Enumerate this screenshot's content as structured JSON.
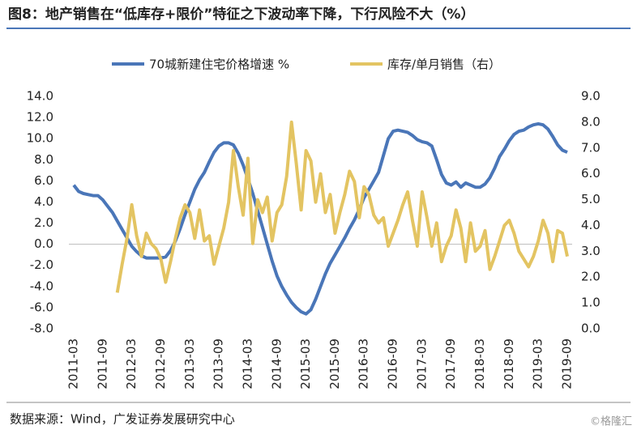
{
  "chart_data": {
    "type": "line",
    "title": "图8：地产销售在“低库存+限价”特征之下波动率下降，下行风险不大（%）",
    "source": "数据来源：Wind，广发证券发展研究中心",
    "watermark": "©格隆汇",
    "categories": [
      "2011-03",
      null,
      null,
      null,
      null,
      null,
      "2011-09",
      null,
      null,
      null,
      null,
      null,
      "2012-03",
      null,
      null,
      null,
      null,
      null,
      "2012-09",
      null,
      null,
      null,
      null,
      null,
      "2013-03",
      null,
      null,
      null,
      null,
      null,
      "2013-09",
      null,
      null,
      null,
      null,
      null,
      "2014-03",
      null,
      null,
      null,
      null,
      null,
      "2014-09",
      null,
      null,
      null,
      null,
      null,
      "2015-03",
      null,
      null,
      null,
      null,
      null,
      "2015-09",
      null,
      null,
      null,
      null,
      null,
      "2016-03",
      null,
      null,
      null,
      null,
      null,
      "2016-09",
      null,
      null,
      null,
      null,
      null,
      "2017-03",
      null,
      null,
      null,
      null,
      null,
      "2017-09",
      null,
      null,
      null,
      null,
      null,
      "2018-03",
      null,
      null,
      null,
      null,
      null,
      "2018-09",
      null,
      null,
      null,
      null,
      null,
      "2019-03",
      null,
      null,
      null,
      null,
      null,
      "2019-09"
    ],
    "series": [
      {
        "name": "70城新建住宅价格增速 %",
        "color": "#4a76b8",
        "values": [
          5.6,
          5.0,
          4.8,
          4.7,
          4.6,
          4.6,
          4.2,
          3.6,
          3.0,
          2.2,
          1.4,
          0.6,
          -0.2,
          -0.7,
          -1.1,
          -1.3,
          -1.3,
          -1.3,
          -1.3,
          -1.2,
          -0.6,
          0.3,
          1.5,
          2.8,
          4.0,
          5.2,
          6.1,
          6.8,
          7.8,
          8.7,
          9.3,
          9.6,
          9.6,
          9.4,
          8.6,
          7.5,
          6.2,
          4.8,
          3.2,
          1.6,
          0.0,
          -1.6,
          -3.0,
          -4.0,
          -4.8,
          -5.5,
          -6.0,
          -6.4,
          -6.6,
          -6.2,
          -5.2,
          -4.0,
          -2.8,
          -1.8,
          -1.0,
          -0.2,
          0.6,
          1.5,
          2.3,
          3.3,
          4.4,
          5.2,
          6.0,
          6.8,
          8.4,
          10.0,
          10.7,
          10.8,
          10.7,
          10.6,
          10.3,
          9.9,
          9.7,
          9.6,
          9.3,
          8.0,
          6.6,
          5.8,
          5.6,
          5.9,
          5.4,
          5.8,
          5.6,
          5.4,
          5.4,
          5.7,
          6.3,
          7.2,
          8.3,
          9.0,
          9.8,
          10.4,
          10.7,
          10.8,
          11.1,
          11.3,
          11.4,
          11.3,
          10.9,
          10.2,
          9.4,
          8.9,
          8.7
        ]
      },
      {
        "name": "库存/单月销售（右）",
        "color": "#e3c462",
        "axis": "y2",
        "values": [
          null,
          null,
          null,
          null,
          null,
          null,
          null,
          null,
          null,
          1.4,
          2.5,
          3.5,
          4.8,
          3.6,
          2.8,
          3.7,
          3.3,
          3.1,
          2.7,
          1.8,
          2.6,
          3.5,
          4.3,
          4.8,
          4.5,
          3.5,
          4.6,
          3.4,
          3.6,
          2.5,
          3.2,
          3.9,
          4.9,
          6.9,
          5.5,
          4.4,
          6.6,
          3.3,
          5.0,
          4.5,
          5.1,
          3.4,
          4.5,
          4.8,
          5.9,
          8.0,
          6.4,
          4.6,
          6.9,
          6.5,
          4.9,
          6.0,
          4.5,
          5.2,
          3.7,
          4.5,
          5.2,
          6.1,
          5.7,
          4.3,
          5.5,
          5.2,
          4.4,
          4.1,
          4.3,
          3.2,
          3.7,
          4.2,
          4.8,
          5.3,
          4.2,
          3.2,
          5.3,
          4.3,
          3.2,
          4.1,
          2.6,
          3.2,
          3.6,
          4.6,
          3.9,
          2.6,
          4.1,
          3.0,
          3.2,
          3.8,
          2.3,
          2.8,
          3.4,
          4.0,
          4.2,
          3.7,
          3.0,
          2.7,
          2.4,
          2.8,
          3.4,
          4.2,
          3.7,
          2.6,
          3.8,
          3.7,
          2.8
        ]
      }
    ],
    "ylim": [
      -8,
      14
    ],
    "yticks": [
      {
        "value": -8,
        "label": "-8.0"
      },
      {
        "value": -6,
        "label": "-6.0"
      },
      {
        "value": -4,
        "label": "-4.0"
      },
      {
        "value": -2,
        "label": "-2.0"
      },
      {
        "value": 0,
        "label": "0.0"
      },
      {
        "value": 2,
        "label": "2.0"
      },
      {
        "value": 4,
        "label": "4.0"
      },
      {
        "value": 6,
        "label": "6.0"
      },
      {
        "value": 8,
        "label": "8.0"
      },
      {
        "value": 10,
        "label": "10.0"
      },
      {
        "value": 12,
        "label": "12.0"
      },
      {
        "value": 14,
        "label": "14.0"
      }
    ],
    "y2lim": [
      0,
      9
    ],
    "y2ticks": [
      {
        "value": 0,
        "label": "0.0"
      },
      {
        "value": 1,
        "label": "1.0"
      },
      {
        "value": 2,
        "label": "2.0"
      },
      {
        "value": 3,
        "label": "3.0"
      },
      {
        "value": 4,
        "label": "4.0"
      },
      {
        "value": 5,
        "label": "5.0"
      },
      {
        "value": 6,
        "label": "6.0"
      },
      {
        "value": 7,
        "label": "7.0"
      },
      {
        "value": 8,
        "label": "8.0"
      },
      {
        "value": 9,
        "label": "9.0"
      }
    ]
  }
}
